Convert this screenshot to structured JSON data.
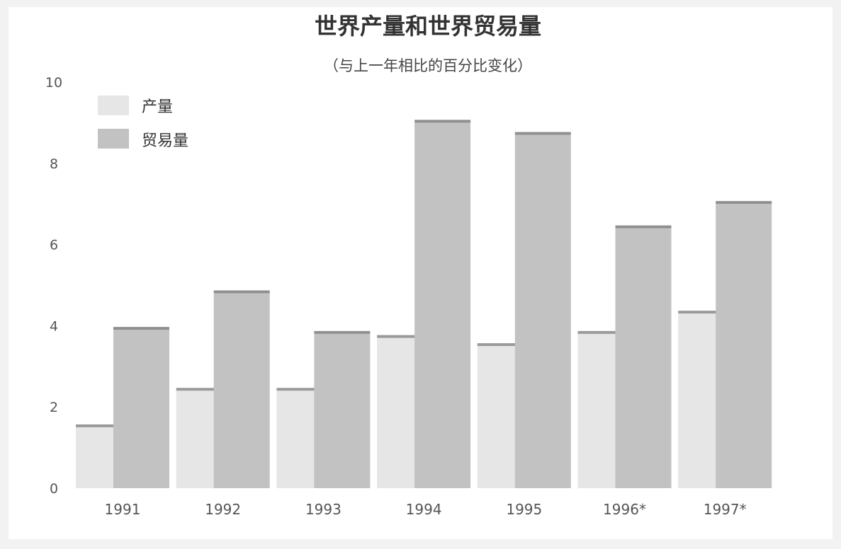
{
  "chart_data": {
    "type": "bar",
    "title": "世界产量和世界贸易量",
    "subtitle": "（与上一年相比的百分比变化）",
    "xlabel": "",
    "ylabel": "",
    "ylim": [
      0,
      10
    ],
    "yticks": [
      0,
      2,
      4,
      6,
      8,
      10
    ],
    "grid": false,
    "legend_position": "top-left",
    "categories": [
      "1991",
      "1992",
      "1993",
      "1994",
      "1995",
      "1996*",
      "1997*"
    ],
    "series": [
      {
        "name": "产量",
        "values": [
          1.5,
          2.4,
          2.4,
          3.7,
          3.5,
          3.8,
          4.3
        ],
        "color": "#e6e6e6"
      },
      {
        "name": "贸易量",
        "values": [
          3.9,
          4.8,
          3.8,
          9.0,
          8.7,
          6.4,
          7.0
        ],
        "color": "#c2c2c2"
      }
    ]
  }
}
